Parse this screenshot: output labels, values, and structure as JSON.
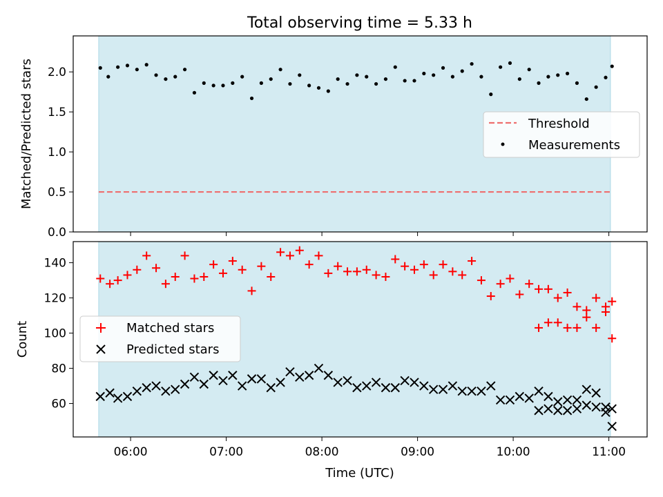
{
  "figure_title": "Total observing time = 5.33 h",
  "colors": {
    "shade": "#d4ebf2",
    "threshold": "#ee6e6e",
    "measurement": "#000000",
    "matched": "#ff0000",
    "predicted": "#000000"
  },
  "chart_data": [
    {
      "type": "scatter",
      "ylabel": "Matched/Predicted stars",
      "ylim": [
        0,
        2.45
      ],
      "yticks": [
        0.0,
        0.5,
        1.0,
        1.5,
        2.0
      ],
      "ytick_labels": [
        "0.0",
        "0.5",
        "1.0",
        "1.5",
        "2.0"
      ],
      "shaded_span": [
        "05:40",
        "11:01"
      ],
      "legend": {
        "placement": "center-right",
        "entries": [
          "Threshold",
          "Measurements"
        ]
      },
      "threshold": {
        "name": "Threshold",
        "value": 0.5,
        "start": "05:40",
        "end": "11:01"
      },
      "series": [
        {
          "name": "Measurements",
          "times": [
            "05:41",
            "05:46",
            "05:52",
            "05:58",
            "06:04",
            "06:10",
            "06:16",
            "06:22",
            "06:28",
            "06:34",
            "06:40",
            "06:46",
            "06:52",
            "06:58",
            "07:04",
            "07:10",
            "07:16",
            "07:22",
            "07:28",
            "07:34",
            "07:40",
            "07:46",
            "07:52",
            "07:58",
            "08:04",
            "08:10",
            "08:16",
            "08:22",
            "08:28",
            "08:34",
            "08:40",
            "08:46",
            "08:52",
            "08:58",
            "09:04",
            "09:10",
            "09:16",
            "09:22",
            "09:28",
            "09:34",
            "09:40",
            "09:46",
            "09:52",
            "09:58",
            "10:04",
            "10:10",
            "10:16",
            "10:22",
            "10:28",
            "10:34",
            "10:40",
            "10:46",
            "10:52",
            "10:58",
            "11:02"
          ],
          "values": [
            2.05,
            1.94,
            2.06,
            2.08,
            2.03,
            2.09,
            1.96,
            1.91,
            1.94,
            2.03,
            1.74,
            1.86,
            1.83,
            1.83,
            1.86,
            1.94,
            1.67,
            1.86,
            1.91,
            2.03,
            1.85,
            1.96,
            1.83,
            1.8,
            1.76,
            1.91,
            1.85,
            1.96,
            1.94,
            1.85,
            1.91,
            2.06,
            1.89,
            1.89,
            1.98,
            1.96,
            2.05,
            1.94,
            2.01,
            2.1,
            1.94,
            1.72,
            2.06,
            2.11,
            1.91,
            2.03,
            1.86,
            1.94,
            1.96,
            1.98,
            1.86,
            1.66,
            1.81,
            1.93,
            2.07
          ]
        }
      ]
    },
    {
      "type": "scatter",
      "xlabel": "Time (UTC)",
      "ylabel": "Count",
      "xlim": [
        "05:24",
        "11:24"
      ],
      "xticks": [
        "06:00",
        "07:00",
        "08:00",
        "09:00",
        "10:00",
        "11:00"
      ],
      "ylim": [
        41,
        152
      ],
      "yticks": [
        60,
        80,
        100,
        120,
        140
      ],
      "ytick_labels": [
        "60",
        "80",
        "100",
        "120",
        "140"
      ],
      "shaded_span": [
        "05:40",
        "11:01"
      ],
      "legend": {
        "placement": "center-left",
        "entries": [
          "Matched stars",
          "Predicted stars"
        ]
      },
      "series": [
        {
          "name": "Matched stars",
          "marker": "+",
          "times": [
            "05:41",
            "05:47",
            "05:52",
            "05:58",
            "06:04",
            "06:10",
            "06:16",
            "06:22",
            "06:28",
            "06:34",
            "06:40",
            "06:46",
            "06:52",
            "06:58",
            "07:04",
            "07:10",
            "07:16",
            "07:22",
            "07:28",
            "07:34",
            "07:40",
            "07:46",
            "07:52",
            "07:58",
            "08:04",
            "08:10",
            "08:16",
            "08:22",
            "08:28",
            "08:34",
            "08:40",
            "08:46",
            "08:52",
            "08:58",
            "09:04",
            "09:10",
            "09:16",
            "09:22",
            "09:28",
            "09:34",
            "09:40",
            "09:46",
            "09:52",
            "09:58",
            "10:04",
            "10:10",
            "10:16",
            "10:22",
            "10:28",
            "10:34",
            "10:40",
            "10:46",
            "10:52",
            "10:58",
            "11:02"
          ],
          "values": [
            131,
            128,
            130,
            133,
            136,
            144,
            137,
            128,
            132,
            144,
            131,
            132,
            139,
            134,
            141,
            136,
            124,
            138,
            132,
            146,
            144,
            147,
            139,
            144,
            134,
            138,
            135,
            135,
            136,
            133,
            132,
            142,
            138,
            136,
            139,
            133,
            139,
            135,
            133,
            141,
            130,
            121,
            128,
            131,
            122,
            128,
            125,
            125,
            120,
            123,
            115,
            113,
            120,
            112,
            118
          ]
        },
        {
          "name": "Predicted stars",
          "marker": "x",
          "times": [
            "05:41",
            "05:47",
            "05:52",
            "05:58",
            "06:04",
            "06:10",
            "06:16",
            "06:22",
            "06:28",
            "06:34",
            "06:40",
            "06:46",
            "06:52",
            "06:58",
            "07:04",
            "07:10",
            "07:16",
            "07:22",
            "07:28",
            "07:34",
            "07:40",
            "07:46",
            "07:52",
            "07:58",
            "08:04",
            "08:10",
            "08:16",
            "08:22",
            "08:28",
            "08:34",
            "08:40",
            "08:46",
            "08:52",
            "08:58",
            "09:04",
            "09:10",
            "09:16",
            "09:22",
            "09:28",
            "09:34",
            "09:40",
            "09:46",
            "09:52",
            "09:58",
            "10:04",
            "10:10",
            "10:16",
            "10:22",
            "10:28",
            "10:34",
            "10:40",
            "10:46",
            "10:52",
            "10:58",
            "11:02"
          ],
          "values": [
            64,
            66,
            63,
            64,
            67,
            69,
            70,
            67,
            68,
            71,
            75,
            71,
            76,
            73,
            76,
            70,
            74,
            74,
            69,
            72,
            78,
            75,
            76,
            80,
            76,
            72,
            73,
            69,
            70,
            72,
            69,
            69,
            73,
            72,
            70,
            68,
            68,
            70,
            67,
            67,
            67,
            70,
            62,
            62,
            64,
            63,
            67,
            64,
            61,
            62,
            62,
            68,
            66,
            58,
            57
          ]
        },
        {
          "name": "Matched stars (late)",
          "marker": "+",
          "times": [
            "10:16",
            "10:22",
            "10:28",
            "10:34",
            "10:40",
            "10:46",
            "10:52",
            "10:58",
            "11:02"
          ],
          "values": [
            103,
            106,
            106,
            103,
            103,
            109,
            103,
            115,
            97
          ]
        },
        {
          "name": "Predicted stars (late)",
          "marker": "x",
          "times": [
            "10:16",
            "10:22",
            "10:28",
            "10:34",
            "10:40",
            "10:46",
            "10:52",
            "10:58",
            "11:02"
          ],
          "values": [
            56,
            57,
            56,
            56,
            57,
            59,
            58,
            55,
            47
          ]
        }
      ]
    }
  ]
}
